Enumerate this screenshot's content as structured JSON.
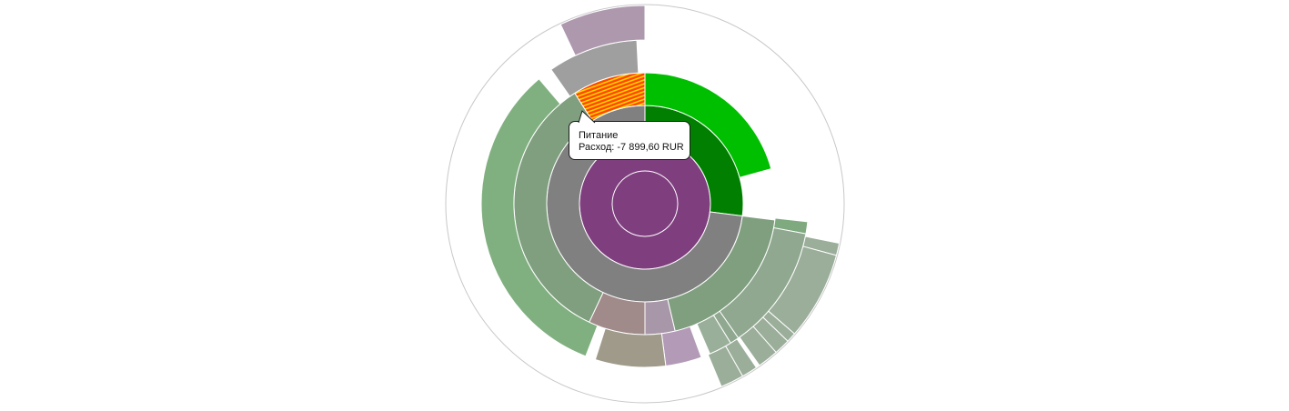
{
  "chart_data": {
    "type": "sunburst",
    "levels": [
      {
        "level": 0,
        "segments": [
          {
            "value": 100,
            "color": "#d2aed0"
          }
        ]
      },
      {
        "level": 1,
        "segments": [
          {
            "value": 100,
            "color": "#7f3f7f"
          }
        ]
      },
      {
        "level": 2,
        "segments": [
          {
            "value": 27.0,
            "color": "#007f00"
          },
          {
            "value": 73.0,
            "color": "#808080"
          }
        ]
      },
      {
        "level": 3,
        "segments": [
          {
            "value": 20.7,
            "color": "#00be00"
          },
          {
            "value": 6.3,
            "gap": true
          },
          {
            "value": 19.3,
            "color": "#7f9f7f"
          },
          {
            "value": 3.7,
            "color": "#a897a8"
          },
          {
            "value": 7.0,
            "color": "#a08a8a"
          },
          {
            "value": 34.0,
            "color": "#7f9f7f"
          },
          {
            "value": 9.0,
            "color": "#7f7f7f",
            "label": "Питание",
            "amount": "Расход: -7 899,60 RUR",
            "highlighted": true
          }
        ]
      },
      {
        "level": 4,
        "segments": [
          {
            "value": 27.0,
            "gap": true
          },
          {
            "value": 1.2,
            "color": "#7faa7f"
          },
          {
            "value": 12.5,
            "color": "#8fa88f"
          },
          {
            "value": 0.9,
            "color": "#90a890"
          },
          {
            "value": 2.3,
            "color": "#9aaf9a"
          },
          {
            "value": 0.9,
            "gap": true
          },
          {
            "value": 3.6,
            "color": "#b39bb8"
          },
          {
            "value": 7.0,
            "color": "#9f9a8a"
          },
          {
            "value": 1.0,
            "gap": true
          },
          {
            "value": 33.2,
            "color": "#80b080"
          },
          {
            "value": 1.5,
            "gap": true
          },
          {
            "value": 9.0,
            "color": "#9f9f9f"
          },
          {
            "value": 0.8,
            "gap": true
          }
        ]
      },
      {
        "level": 5,
        "segments": [
          {
            "value": 28.2,
            "gap": true
          },
          {
            "value": 1.0,
            "color": "#9aae9a"
          },
          {
            "value": 7.2,
            "color": "#9aae9a"
          },
          {
            "value": 0.8,
            "color": "#9aae9a"
          },
          {
            "value": 1.3,
            "color": "#9aae9a"
          },
          {
            "value": 1.7,
            "color": "#9aae9a"
          },
          {
            "value": 0.3,
            "gap": true
          },
          {
            "value": 1.3,
            "color": "#9aae9a"
          },
          {
            "value": 1.9,
            "color": "#9aae9a"
          },
          {
            "value": 49.3,
            "gap": true
          },
          {
            "value": 7.0,
            "color": "#ae98ae"
          }
        ]
      }
    ],
    "tooltip": {
      "title": "Питание",
      "amount": "Расход: -7 899,60 RUR"
    },
    "colors": {
      "highlight_fill": "#ff4500",
      "highlight_stripe": "#ffd700",
      "outer_circle": "#c8c8c8",
      "segment_border": "#ffffff"
    }
  }
}
